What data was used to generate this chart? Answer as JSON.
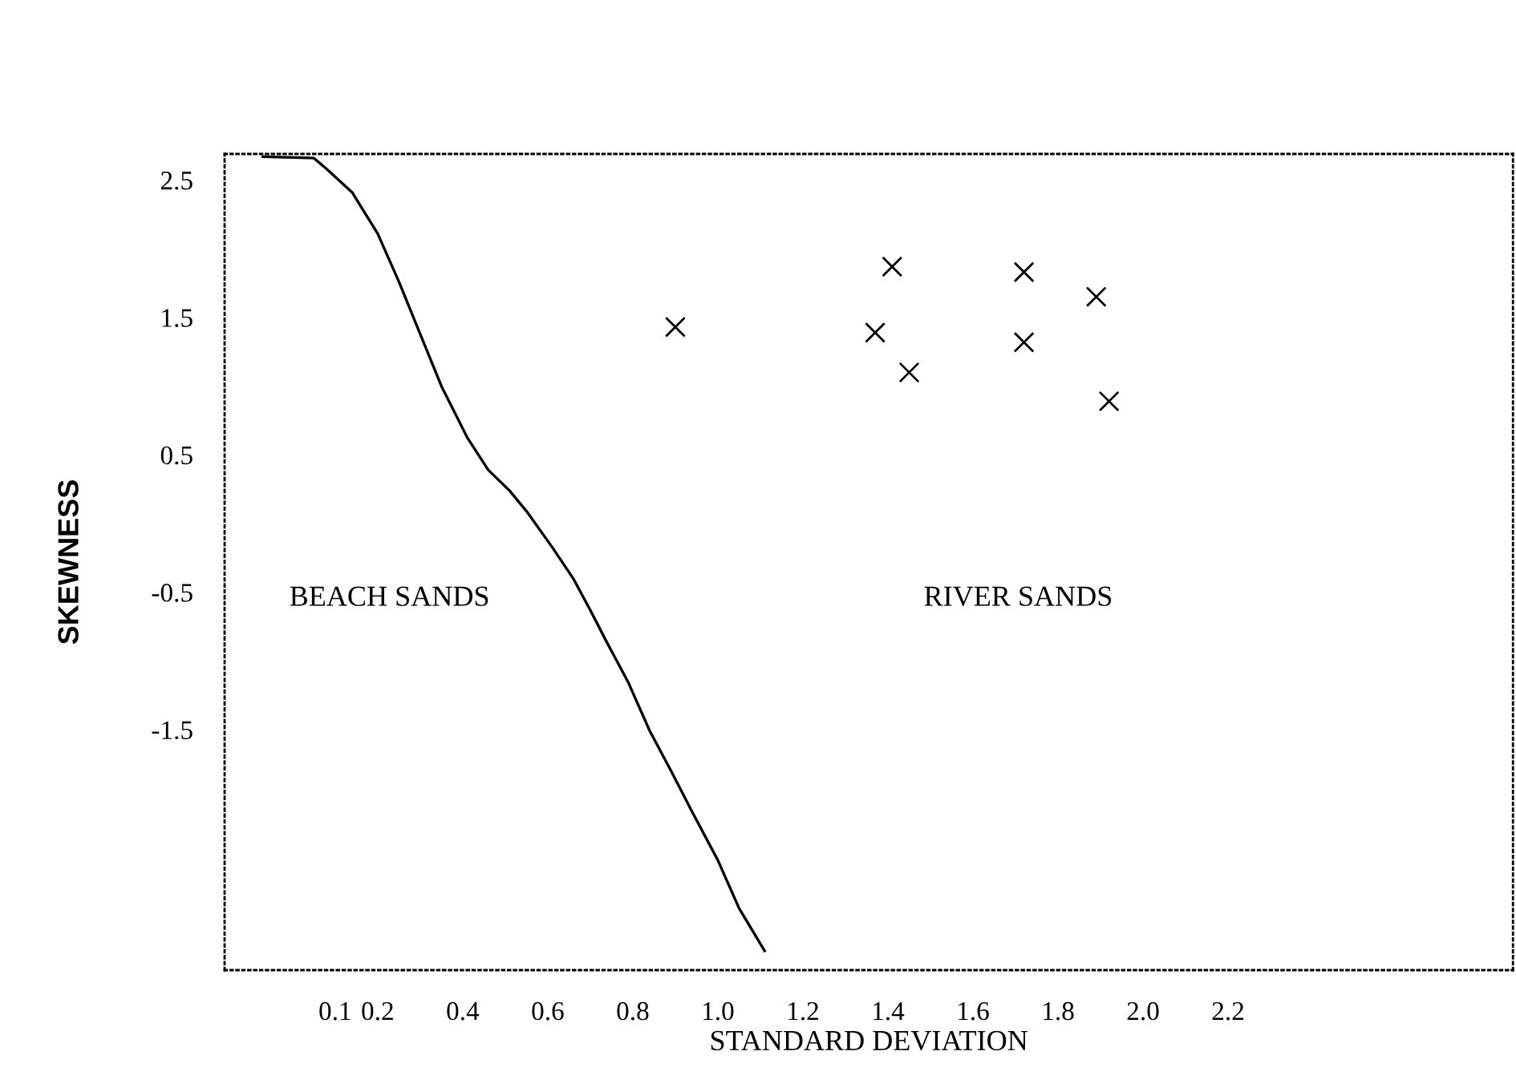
{
  "chart_data": {
    "type": "scatter",
    "xlabel": "STANDARD DEVIATION",
    "ylabel": "SKEWNESS",
    "xlim": [
      -0.16,
      2.87
    ],
    "ylim": [
      -3.25,
      2.69
    ],
    "xticks": [
      0.1,
      0.2,
      0.4,
      0.6,
      0.8,
      {
        "value": 1.0,
        "label": "1.0"
      },
      1.2,
      1.4,
      1.6,
      1.8,
      {
        "value": 2.0,
        "label": "2.0"
      },
      2.2
    ],
    "yticks": [
      -1.5,
      -0.5,
      0.5,
      1.5,
      2.5
    ],
    "grid": false,
    "marker": "cross",
    "series": [
      {
        "color": "#000000",
        "x": [
          0.9,
          1.37,
          1.41,
          1.45,
          1.72,
          1.72,
          1.92,
          1.89
        ],
        "values": [
          1.43,
          1.39,
          1.87,
          1.1,
          1.83,
          1.32,
          0.89,
          1.65
        ]
      },
      {
        "type": "line",
        "color": "#000000",
        "marker": "none",
        "x": [
          -0.07,
          0.05,
          0.08,
          0.14,
          0.2,
          0.25,
          0.3,
          0.35,
          0.41,
          0.46,
          0.51,
          0.55,
          0.61,
          0.66,
          0.7,
          0.74,
          0.79,
          0.84,
          0.89,
          0.94,
          1.0,
          1.05,
          1.11
        ],
        "values": [
          2.67,
          2.66,
          2.58,
          2.41,
          2.11,
          1.76,
          1.38,
          1.0,
          0.63,
          0.39,
          0.24,
          0.09,
          -0.17,
          -0.4,
          -0.63,
          -0.87,
          -1.16,
          -1.51,
          -1.8,
          -2.1,
          -2.45,
          -2.8,
          -3.11
        ]
      }
    ],
    "annotations": [
      "BEACH SANDS",
      "RIVER SANDS"
    ]
  }
}
